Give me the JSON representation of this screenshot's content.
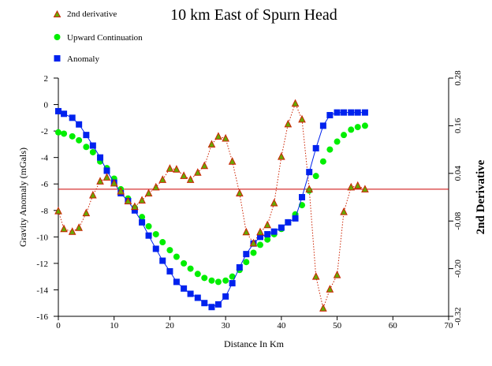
{
  "chart_data": {
    "type": "scatter",
    "title": "10 km East of Spurn Head",
    "xlabel": "Distance In Km",
    "ylabel": "Gravity Anomaly (mGals)",
    "y2label": "2nd Derivative",
    "xlim": [
      0,
      70
    ],
    "ylim": [
      -16,
      2
    ],
    "y2lim": [
      -0.32,
      0.28
    ],
    "x_ticks": [
      "0",
      "10",
      "20",
      "30",
      "40",
      "50",
      "60",
      "70"
    ],
    "y_ticks": [
      "2",
      "0",
      "-2",
      "-4",
      "-6",
      "-8",
      "-10",
      "-12",
      "-14",
      "-16"
    ],
    "y2_ticks": [
      "0.28",
      "0.16",
      "0.04",
      "-0.08",
      "-0.20",
      "-0.32"
    ],
    "reference_line_y": -6.4,
    "legend_position": "top-left",
    "colors": {
      "second_derivative": "#cc2200",
      "second_derivative_fill": "#66aa00",
      "upward_continuation": "#00ee00",
      "anomaly": "#0022ee",
      "reference_line": "#cc0000"
    },
    "series": [
      {
        "name": "2nd derivative",
        "axis": "right",
        "x": [
          0,
          1,
          2.5,
          3.7,
          5,
          6.2,
          7.5,
          8.7,
          10,
          11.2,
          12.5,
          13.7,
          15,
          16.2,
          17.5,
          18.7,
          20,
          21.2,
          22.5,
          23.7,
          25,
          26.2,
          27.5,
          28.7,
          30,
          31.2,
          32.5,
          33.7,
          35,
          36.2,
          37.5,
          38.7,
          40,
          41.2,
          42.5,
          43.7,
          45,
          46.2,
          47.5,
          48.7,
          50,
          51.2,
          52.5,
          53.7,
          55
        ],
        "values": [
          -0.055,
          -0.1,
          -0.107,
          -0.097,
          -0.06,
          -0.015,
          0.02,
          0.03,
          0.015,
          -0.005,
          -0.03,
          -0.044,
          -0.028,
          -0.01,
          0.005,
          0.024,
          0.052,
          0.05,
          0.034,
          0.024,
          0.042,
          0.059,
          0.113,
          0.133,
          0.128,
          0.07,
          -0.01,
          -0.108,
          -0.136,
          -0.108,
          -0.09,
          -0.035,
          0.082,
          0.164,
          0.216,
          0.176,
          0.0,
          -0.22,
          -0.3,
          -0.252,
          -0.216,
          -0.057,
          0.005,
          0.009,
          0.0
        ]
      },
      {
        "name": "Upward Continuation",
        "axis": "left",
        "x": [
          0,
          1,
          2.5,
          3.7,
          5,
          6.2,
          7.5,
          8.7,
          10,
          11.2,
          12.5,
          13.7,
          15,
          16.2,
          17.5,
          18.7,
          20,
          21.2,
          22.5,
          23.7,
          25,
          26.2,
          27.5,
          28.7,
          30,
          31.2,
          32.5,
          33.7,
          35,
          36.2,
          37.5,
          38.7,
          40,
          41.2,
          42.5,
          43.7,
          45,
          46.2,
          47.5,
          48.7,
          50,
          51.2,
          52.5,
          53.7,
          55
        ],
        "values": [
          -2.1,
          -2.2,
          -2.4,
          -2.7,
          -3.2,
          -3.6,
          -4.3,
          -4.8,
          -5.6,
          -6.4,
          -7.1,
          -7.8,
          -8.5,
          -9.2,
          -9.8,
          -10.4,
          -11.0,
          -11.5,
          -12.0,
          -12.4,
          -12.8,
          -13.1,
          -13.3,
          -13.4,
          -13.3,
          -13.0,
          -12.5,
          -11.9,
          -11.2,
          -10.6,
          -10.2,
          -9.8,
          -9.4,
          -8.9,
          -8.3,
          -7.6,
          -6.5,
          -5.4,
          -4.3,
          -3.4,
          -2.8,
          -2.3,
          -1.9,
          -1.7,
          -1.6
        ]
      },
      {
        "name": "Anomaly",
        "axis": "left",
        "x": [
          0,
          1,
          2.5,
          3.7,
          5,
          6.2,
          7.5,
          8.7,
          10,
          11.2,
          12.5,
          13.7,
          15,
          16.2,
          17.5,
          18.7,
          20,
          21.2,
          22.5,
          23.7,
          25,
          26.2,
          27.5,
          28.7,
          30,
          31.2,
          32.5,
          33.7,
          35,
          36.2,
          37.5,
          38.7,
          40,
          41.2,
          42.5,
          43.7,
          45,
          46.2,
          47.5,
          48.7,
          50,
          51.2,
          52.5,
          53.7,
          55
        ],
        "values": [
          -0.5,
          -0.7,
          -1.0,
          -1.5,
          -2.3,
          -3.1,
          -4.0,
          -5.0,
          -5.9,
          -6.7,
          -7.3,
          -8.0,
          -8.9,
          -9.9,
          -10.9,
          -11.8,
          -12.6,
          -13.4,
          -13.9,
          -14.3,
          -14.6,
          -15.0,
          -15.3,
          -15.1,
          -14.5,
          -13.5,
          -12.3,
          -11.3,
          -10.5,
          -10.0,
          -9.8,
          -9.6,
          -9.3,
          -8.9,
          -8.6,
          -7.0,
          -5.1,
          -3.3,
          -1.6,
          -0.8,
          -0.6,
          -0.6,
          -0.6,
          -0.6,
          -0.6
        ]
      }
    ]
  }
}
